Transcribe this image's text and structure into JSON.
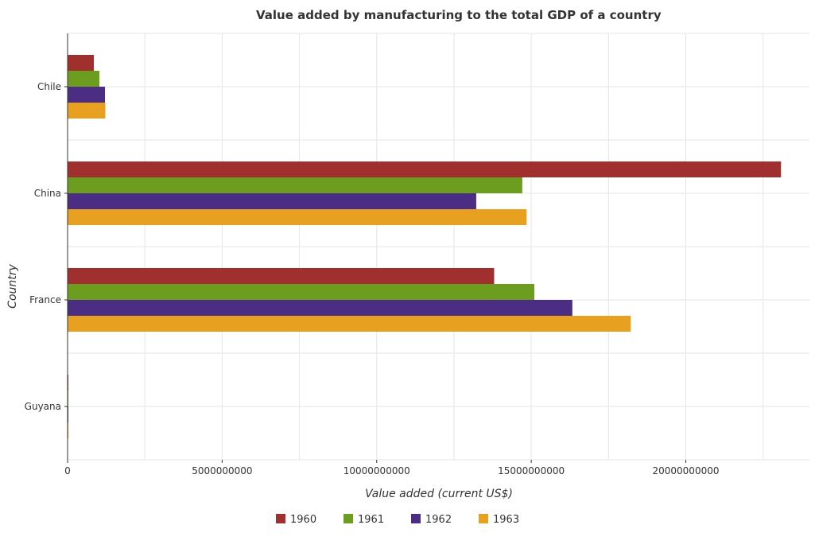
{
  "chart_data": {
    "type": "bar",
    "orientation": "horizontal",
    "title": "Value added by manufacturing to the total GDP of a country",
    "xlabel": "Value added (current US$)",
    "ylabel": "Country",
    "categories": [
      "Chile",
      "China",
      "France",
      "Guyana"
    ],
    "series": [
      {
        "name": "1960",
        "color": "#a0302d",
        "values": [
          850000000,
          23080000000,
          13800000000,
          20000000
        ]
      },
      {
        "name": "1961",
        "color": "#6d9d1e",
        "values": [
          1030000000,
          14710000000,
          15100000000,
          22000000
        ]
      },
      {
        "name": "1962",
        "color": "#4b2e83",
        "values": [
          1210000000,
          13220000000,
          16330000000,
          24000000
        ]
      },
      {
        "name": "1963",
        "color": "#e8a020",
        "values": [
          1220000000,
          14850000000,
          18220000000,
          28000000
        ]
      }
    ],
    "xlim": [
      0,
      24000000000
    ],
    "xticks": [
      0,
      5000000000,
      10000000000,
      15000000000,
      20000000000
    ],
    "xtick_labels": [
      "0",
      "5000000000",
      "10000000000",
      "15000000000",
      "20000000000"
    ],
    "grid": true,
    "legend_position": "bottom"
  }
}
